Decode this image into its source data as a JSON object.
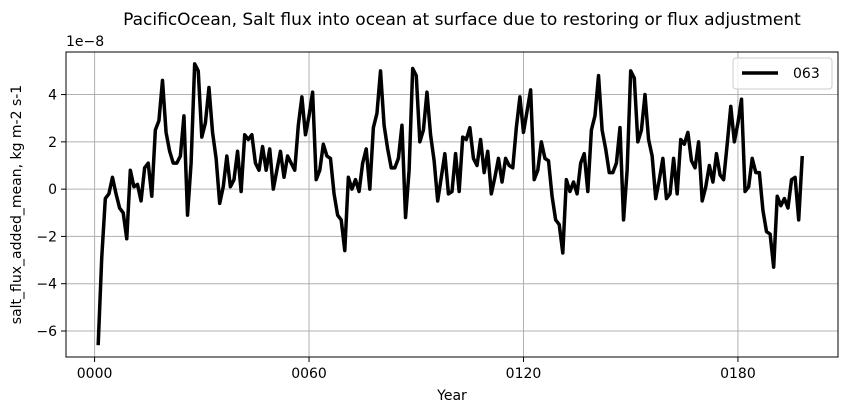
{
  "chart_data": {
    "type": "line",
    "title": "PacificOcean, Salt flux into ocean at surface due to restoring or flux adjustment",
    "xlabel": "Year",
    "ylabel": "salt_flux_added_mean, kg m-2 s-1",
    "y_offset_label": "1e−8",
    "xlim": [
      -8,
      208
    ],
    "ylim": [
      -7.1,
      5.8
    ],
    "x_ticks": [
      {
        "value": 0,
        "label": "0000"
      },
      {
        "value": 60,
        "label": "0060"
      },
      {
        "value": 120,
        "label": "0120"
      },
      {
        "value": 180,
        "label": "0180"
      }
    ],
    "y_ticks": [
      {
        "value": -6,
        "label": "−6"
      },
      {
        "value": -4,
        "label": "−4"
      },
      {
        "value": -2,
        "label": "−2"
      },
      {
        "value": 0,
        "label": "0"
      },
      {
        "value": 2,
        "label": "2"
      },
      {
        "value": 4,
        "label": "4"
      }
    ],
    "grid": true,
    "legend_position": "top-right",
    "series": [
      {
        "name": "063",
        "color": "#000000",
        "x_start": 1,
        "values": [
          -6.6,
          -2.9,
          -0.4,
          -0.2,
          0.5,
          -0.2,
          -0.8,
          -1.0,
          -2.1,
          0.8,
          0.1,
          0.2,
          -0.5,
          0.9,
          1.1,
          -0.3,
          2.5,
          2.9,
          4.6,
          2.4,
          1.6,
          1.1,
          1.1,
          1.4,
          3.1,
          -1.1,
          1.1,
          5.3,
          5.0,
          2.2,
          2.8,
          4.3,
          2.4,
          1.3,
          -0.6,
          0.1,
          1.4,
          0.1,
          0.4,
          1.6,
          -0.1,
          2.3,
          2.1,
          2.3,
          1.1,
          0.8,
          1.8,
          0.8,
          1.7,
          0.0,
          0.8,
          1.6,
          0.5,
          1.4,
          1.1,
          0.8,
          2.7,
          3.9,
          2.3,
          3.1,
          4.1,
          0.4,
          0.8,
          1.9,
          1.4,
          1.3,
          -0.2,
          -1.1,
          -1.3,
          -2.6,
          0.5,
          0.0,
          0.4,
          -0.1,
          1.1,
          1.7,
          0.0,
          2.6,
          3.2,
          5.0,
          2.7,
          1.7,
          0.9,
          0.9,
          1.3,
          2.7,
          -1.2,
          0.8,
          5.1,
          4.8,
          2.0,
          2.5,
          4.1,
          2.3,
          1.2,
          -0.5,
          0.5,
          1.5,
          -0.2,
          -0.1,
          1.5,
          -0.1,
          2.2,
          2.1,
          2.6,
          1.3,
          1.0,
          2.1,
          0.7,
          1.6,
          -0.2,
          0.5,
          1.3,
          0.3,
          1.3,
          1.0,
          0.9,
          2.6,
          3.9,
          2.4,
          3.3,
          4.2,
          0.4,
          0.8,
          2.0,
          1.3,
          1.2,
          -0.3,
          -1.3,
          -1.5,
          -2.7,
          0.4,
          -0.1,
          0.3,
          -0.2,
          1.1,
          1.5,
          -0.1,
          2.5,
          3.1,
          4.8,
          2.5,
          1.7,
          0.7,
          0.7,
          1.1,
          2.6,
          -1.3,
          0.8,
          5.0,
          4.7,
          2.0,
          2.5,
          4.0,
          2.1,
          1.4,
          -0.4,
          0.4,
          1.3,
          -0.4,
          -0.2,
          1.3,
          -0.2,
          2.1,
          1.9,
          2.4,
          1.2,
          0.9,
          2.0,
          -0.5,
          0.1,
          1.0,
          0.3,
          1.5,
          0.6,
          0.4,
          1.9,
          3.5,
          2.0,
          2.8,
          3.8,
          -0.1,
          0.1,
          1.3,
          0.7,
          0.7,
          -0.9,
          -1.8,
          -1.9,
          -3.3,
          -0.3,
          -0.7,
          -0.4,
          -0.8,
          0.4,
          0.5,
          -1.3,
          1.4
        ]
      }
    ]
  }
}
